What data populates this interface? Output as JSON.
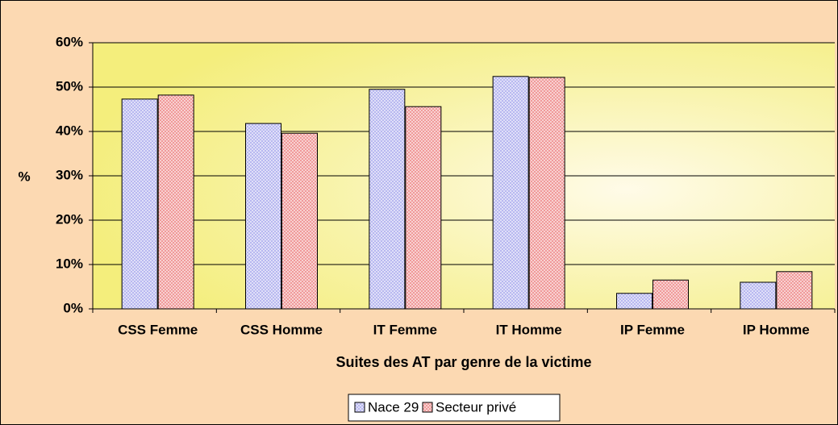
{
  "chart_data": {
    "type": "bar",
    "xlabel": "Suites des AT par genre de la victime",
    "ylabel": "%",
    "categories": [
      "CSS Femme",
      "CSS Homme",
      "IT Femme",
      "IT Homme",
      "IP Femme",
      "IP Homme"
    ],
    "series": [
      {
        "name": "Nace 29",
        "color": "#b8b8f0",
        "values": [
          47.3,
          41.8,
          49.5,
          52.4,
          3.5,
          6.0
        ]
      },
      {
        "name": "Secteur privé",
        "color": "#f09a9a",
        "values": [
          48.2,
          39.6,
          45.6,
          52.2,
          6.5,
          8.4
        ]
      }
    ],
    "ylim": [
      0,
      60
    ],
    "yticks": [
      {
        "value": 0,
        "label": "0%"
      },
      {
        "value": 10,
        "label": "10%"
      },
      {
        "value": 20,
        "label": "20%"
      },
      {
        "value": 30,
        "label": "30%"
      },
      {
        "value": 40,
        "label": "40%"
      },
      {
        "value": 50,
        "label": "50%"
      },
      {
        "value": 60,
        "label": "60%"
      }
    ],
    "grid": true,
    "legend": "bottom"
  }
}
